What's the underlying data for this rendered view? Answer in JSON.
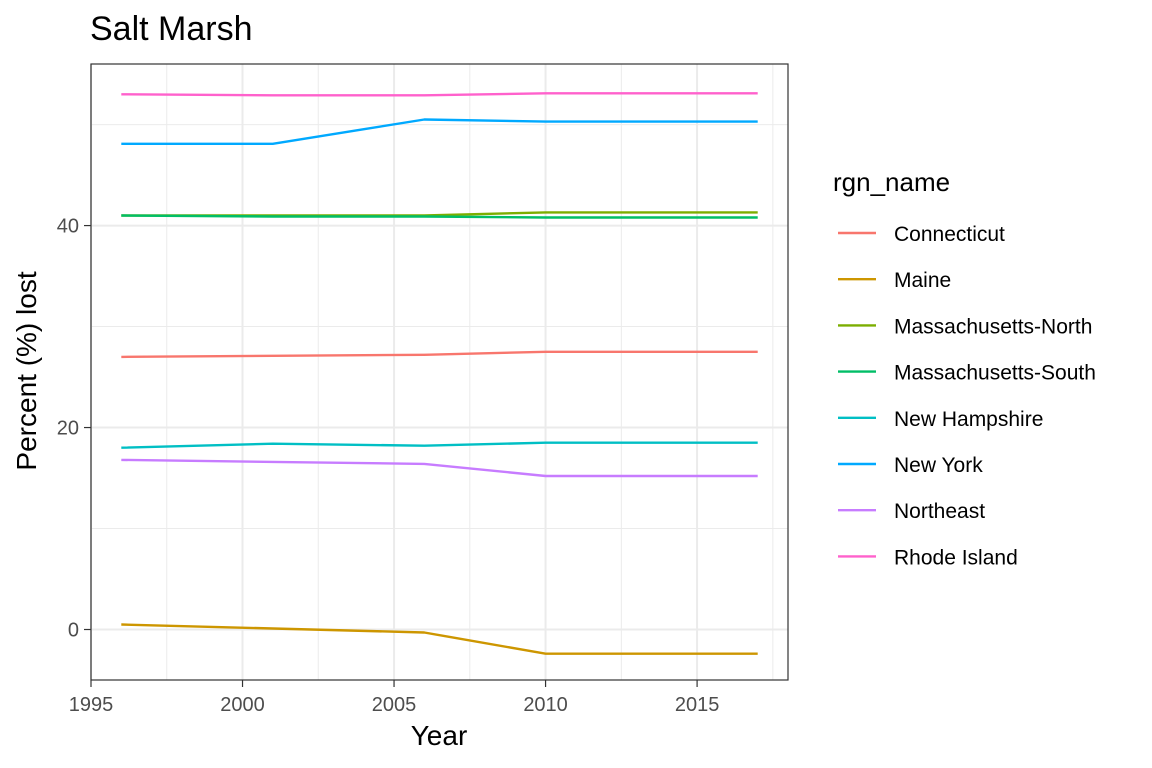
{
  "chart_data": {
    "type": "line",
    "title": "Salt Marsh",
    "xlabel": "Year",
    "ylabel": "Percent (%) lost",
    "xlim": [
      1995,
      2018
    ],
    "ylim": [
      -5,
      56
    ],
    "x_ticks": [
      1995,
      2000,
      2005,
      2010,
      2015
    ],
    "x_tick_labels": [
      "1995",
      "2000",
      "2005",
      "2010",
      "2015"
    ],
    "y_ticks": [
      0,
      20,
      40
    ],
    "y_tick_labels": [
      "0",
      "20",
      "40"
    ],
    "x_minor_ticks": [
      1997.5,
      2002.5,
      2007.5,
      2012.5,
      2017.5
    ],
    "y_minor_ticks": [
      10,
      30,
      50
    ],
    "grid": true,
    "legend_title": "rgn_name",
    "legend_position": "right",
    "x": [
      1996,
      2001,
      2006,
      2010,
      2017
    ],
    "series": [
      {
        "name": "Connecticut",
        "color": "#F8766D",
        "values": [
          27.0,
          27.1,
          27.2,
          27.5,
          27.5
        ]
      },
      {
        "name": "Maine",
        "color": "#CD9600",
        "values": [
          0.5,
          0.1,
          -0.3,
          -2.4,
          -2.4
        ]
      },
      {
        "name": "Massachusetts-North",
        "color": "#7CAE00",
        "values": [
          41.0,
          41.0,
          41.0,
          41.3,
          41.3
        ]
      },
      {
        "name": "Massachusetts-South",
        "color": "#00BE67",
        "values": [
          41.0,
          40.9,
          40.9,
          40.8,
          40.8
        ]
      },
      {
        "name": "New Hampshire",
        "color": "#00BFC4",
        "values": [
          18.0,
          18.4,
          18.2,
          18.5,
          18.5
        ]
      },
      {
        "name": "New York",
        "color": "#00A9FF",
        "values": [
          48.1,
          48.1,
          50.5,
          50.3,
          50.3
        ]
      },
      {
        "name": "Northeast",
        "color": "#C77CFF",
        "values": [
          16.8,
          16.6,
          16.4,
          15.2,
          15.2
        ]
      },
      {
        "name": "Rhode Island",
        "color": "#FF61CC",
        "values": [
          53.0,
          52.9,
          52.9,
          53.1,
          53.1
        ]
      }
    ]
  }
}
